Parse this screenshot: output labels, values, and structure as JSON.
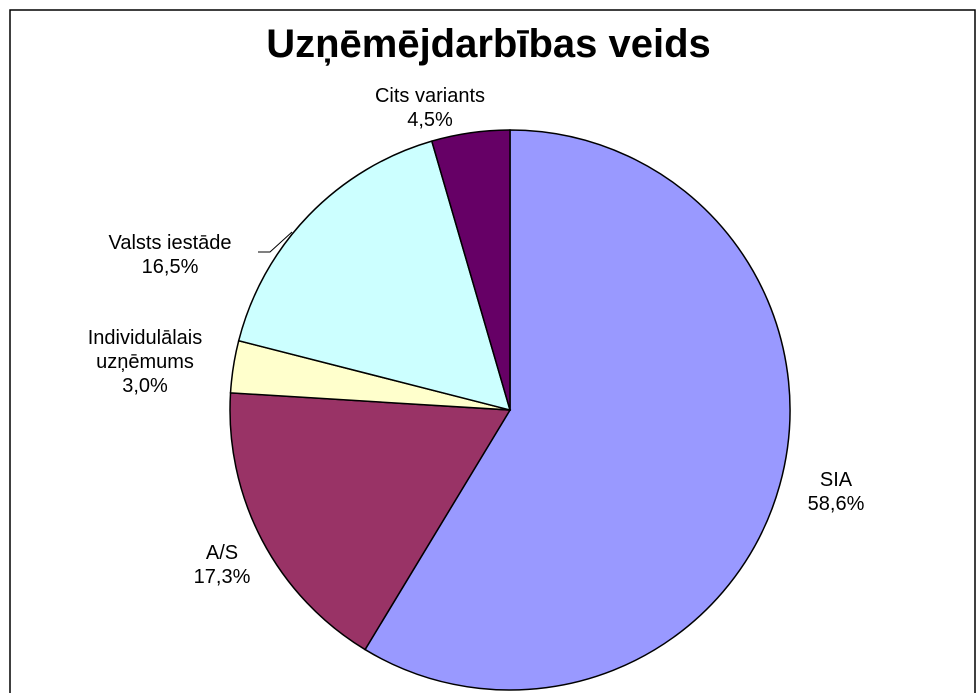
{
  "chart_data": {
    "type": "pie",
    "title": "Uzņēmējdarbības veids",
    "categories": [
      "SIA",
      "A/S",
      "Individulālais uzņēmums",
      "Valsts iestāde",
      "Cits variants"
    ],
    "values": [
      58.6,
      17.3,
      3.0,
      16.5,
      4.5
    ],
    "value_labels": [
      "58,6%",
      "17,3%",
      "3,0%",
      "16,5%",
      "4,5%"
    ],
    "colors": [
      "#9999ff",
      "#993366",
      "#ffffcc",
      "#ccffff",
      "#660066"
    ]
  }
}
